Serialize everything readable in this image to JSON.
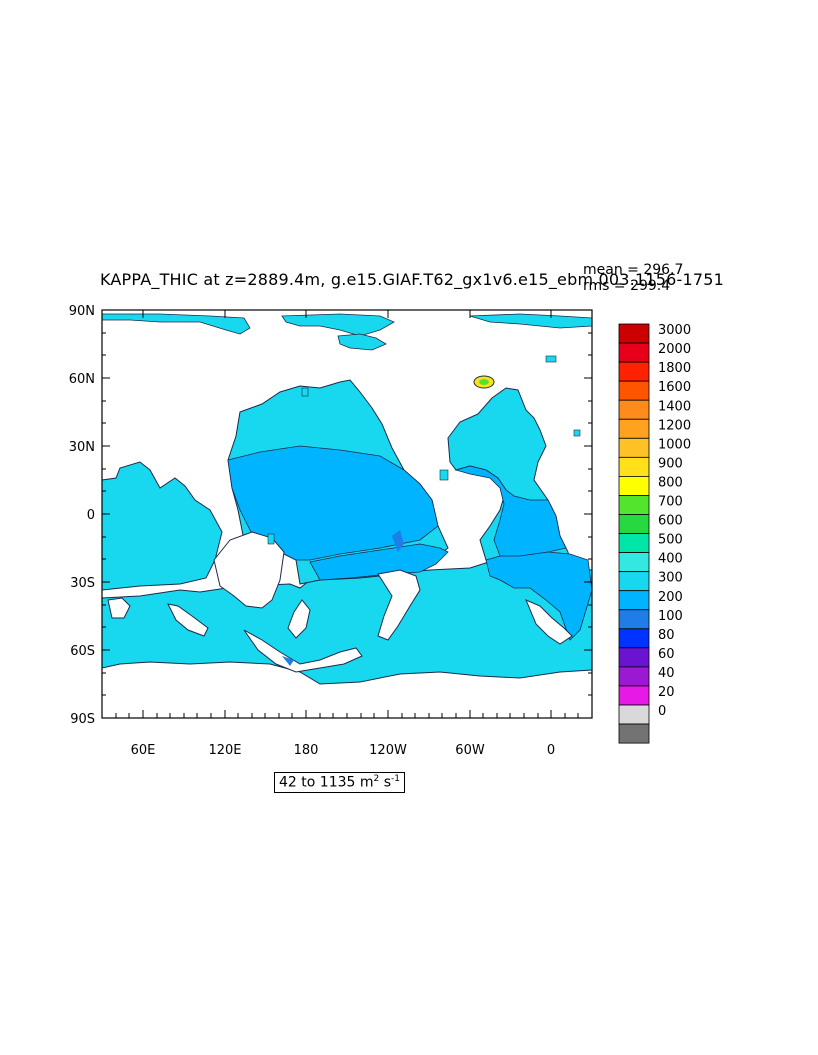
{
  "title": "KAPPA_THIC at z=2889.4m, g.e15.GIAF.T62_gx1v6.e15_ebm.003.",
  "years": "1156-1751",
  "stats": {
    "mean": "mean = 296.7",
    "rms": "rms = 299.4"
  },
  "range": {
    "low": "42",
    "high": "1135",
    "connector": "to",
    "unit_base": "m",
    "unit_exp1": "2",
    "unit_s": "s",
    "unit_exp2": "-1"
  },
  "axes": {
    "y_labels": [
      "90N",
      "60N",
      "30N",
      "0",
      "30S",
      "60S",
      "90S"
    ],
    "x_labels": [
      "60E",
      "120E",
      "180",
      "120W",
      "60W",
      "0"
    ]
  },
  "colorbar": {
    "levels": [
      "3000",
      "2000",
      "1800",
      "1600",
      "1400",
      "1200",
      "1000",
      "900",
      "800",
      "700",
      "600",
      "500",
      "400",
      "300",
      "200",
      "100",
      "80",
      "60",
      "40",
      "20",
      "0"
    ],
    "colors": [
      "#cc0000",
      "#e8001a",
      "#ff2200",
      "#ff5500",
      "#ff8c1a",
      "#ffa21f",
      "#ffc226",
      "#ffe01a",
      "#ffff00",
      "#52e52e",
      "#26d940",
      "#00e6a8",
      "#33e8e0",
      "#18d8f0",
      "#00b4ff",
      "#1e7de6",
      "#0033ff",
      "#6a14d2",
      "#9b19d2",
      "#e619e6",
      "#d9d9d9",
      "#737373"
    ]
  },
  "colors": {
    "ocean_main": "#18d8f0",
    "ocean_blue": "#00b4ff",
    "ocean_deep": "#1e7de6",
    "land": "#ffffff"
  }
}
